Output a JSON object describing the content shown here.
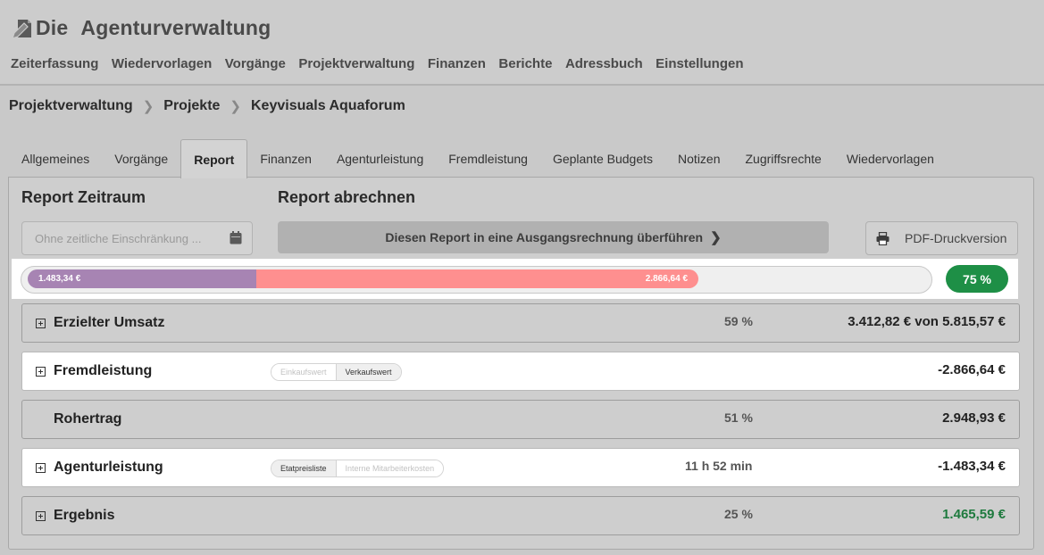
{
  "app": {
    "title_part1": "Die",
    "title_part2": "Agenturverwaltung",
    "logo_icon": "note-pen-icon"
  },
  "nav": [
    "Zeiterfassung",
    "Wiedervorlagen",
    "Vorgänge",
    "Projektverwaltung",
    "Finanzen",
    "Berichte",
    "Adressbuch",
    "Einstellungen"
  ],
  "breadcrumb": [
    "Projektverwaltung",
    "Projekte",
    "Keyvisuals Aquaforum"
  ],
  "tabs": [
    "Allgemeines",
    "Vorgänge",
    "Report",
    "Finanzen",
    "Agenturleistung",
    "Fremdleistung",
    "Geplante Budgets",
    "Notizen",
    "Zugriffsrechte",
    "Wiedervorlagen"
  ],
  "active_tab": "Report",
  "report": {
    "zeitraum_heading": "Report Zeitraum",
    "abrechnen_heading": "Report abrechnen",
    "date_placeholder": "Ohne zeitliche Einschränkung ...",
    "convert_label": "Diesen Report in eine Ausgangsrechnung überführen",
    "pdf_label": "PDF-Druckversion"
  },
  "progress": {
    "agentur_label": "1.483,34 €",
    "fremd_label": "2.866,64 €",
    "percent_label": "75 %",
    "agentur_fraction": 0.255,
    "fremd_fraction": 0.493,
    "colors": {
      "agentur": "#a784b3",
      "fremd": "#fe8f8f",
      "badge": "#1e8f46"
    }
  },
  "rows": {
    "umsatz": {
      "label": "Erzielter Umsatz",
      "percent": "59 %",
      "amount": "3.412,82 € von 5.815,57 €"
    },
    "fremd": {
      "label": "Fremdleistung",
      "toggle_a": "Einkaufswert",
      "toggle_b": "Verkaufswert",
      "amount": "-2.866,64 €"
    },
    "rohertrag": {
      "label": "Rohertrag",
      "percent": "51 %",
      "amount": "2.948,93 €"
    },
    "agentur": {
      "label": "Agenturleistung",
      "toggle_a": "Etatpreisliste",
      "toggle_b": "Interne Mitarbeiterkosten",
      "time": "11 h 52 min",
      "amount": "-1.483,34 €"
    },
    "ergebnis": {
      "label": "Ergebnis",
      "percent": "25 %",
      "amount": "1.465,59 €",
      "amount_color": "#1e7a3e"
    }
  }
}
